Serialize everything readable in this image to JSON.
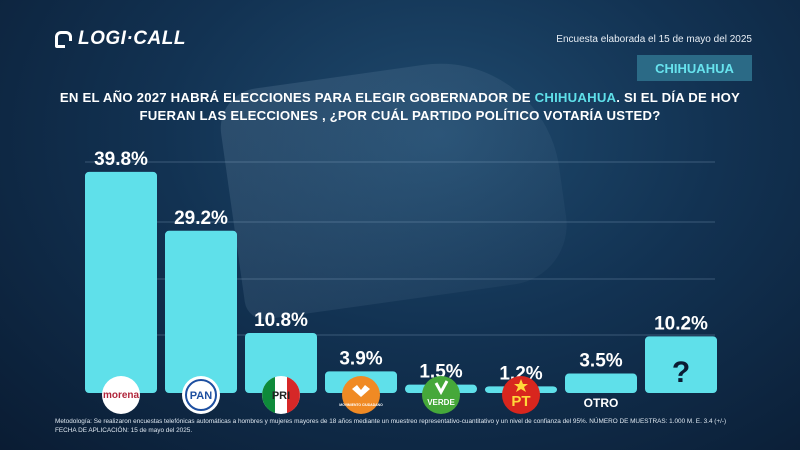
{
  "brand": {
    "name": "LOGI·CALL"
  },
  "header": {
    "survey_date": "Encuesta elaborada el 15 de mayo del 2025",
    "region": "CHIHUAHUA"
  },
  "question": {
    "part1": "EN EL AÑO 2027 HABRÁ ELECCIONES PARA ELEGIR GOBERNADOR DE ",
    "highlight": "CHIHUAHUA",
    "part2": ".  SI EL DÍA DE HOY FUERAN LAS ELECCIONES , ¿POR CUÁL PARTIDO POLÍTICO VOTARÍA USTED?"
  },
  "chart_data": {
    "type": "bar",
    "categories": [
      "morena",
      "PAN",
      "PRI",
      "MOVIMIENTO CIUDADANO",
      "VERDE",
      "PT",
      "OTRO",
      "?"
    ],
    "values": [
      39.8,
      29.2,
      10.8,
      3.9,
      1.5,
      1.2,
      3.5,
      10.2
    ],
    "value_labels": [
      "39.8%",
      "29.2%",
      "10.8%",
      "3.9%",
      "1.5%",
      "1.2%",
      "3.5%",
      "10.2%"
    ],
    "ylim": [
      0,
      45
    ],
    "grid": true,
    "bar_color": "#5fe0ea"
  },
  "party_logos": {
    "morena": {
      "text": "morena",
      "bg": "#ffffff",
      "color": "#b0263b"
    },
    "pan": {
      "text": "PAN",
      "bg": "#ffffff",
      "color": "#1d4fa0"
    },
    "pri": {
      "text": "PRI",
      "green": "#0e8a3a",
      "red": "#d62828"
    },
    "mc": {
      "text": "MOVIMIENTO CIUDADANO",
      "bg": "#f08a24"
    },
    "verde": {
      "text": "VERDE",
      "bg": "#ffffff",
      "color": "#46a83a"
    },
    "pt": {
      "text": "PT",
      "bg": "#d8261e",
      "color": "#ffd83a"
    },
    "otro": {
      "text": "OTRO"
    }
  },
  "footer": {
    "methodology": "Metodología: Se realizaron encuestas telefónicas automáticas a hombres y mujeres mayores de 18 años mediante un muestreo representativo-cuantitativo y un nivel de confianza del 95%. NÚMERO DE MUESTRAS: 1.000 M. E. 3.4 (+/-)",
    "application_date": "FECHA DE APLICACIÓN: 15 de mayo del 2025."
  }
}
